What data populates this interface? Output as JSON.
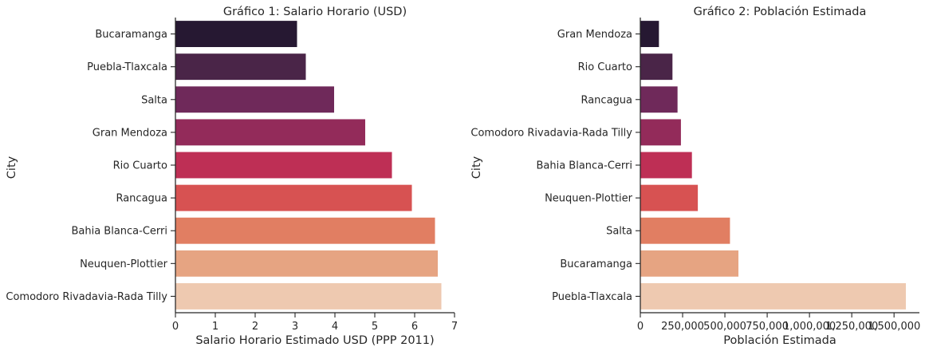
{
  "chart_data": [
    {
      "type": "bar",
      "orientation": "horizontal",
      "title": "Gráfico 1: Salario Horario (USD)",
      "xlabel": "Salario Horario Estimado USD (PPP 2011)",
      "ylabel": "City",
      "categories": [
        "Bucaramanga",
        "Puebla-Tlaxcala",
        "Salta",
        "Gran Mendoza",
        "Rio Cuarto",
        "Rancagua",
        "Bahia Blanca-Cerri",
        "Neuquen-Plottier",
        "Comodoro Rivadavia-Rada Tilly"
      ],
      "values": [
        3.05,
        3.27,
        3.98,
        4.76,
        5.43,
        5.93,
        6.51,
        6.58,
        6.67
      ],
      "xlim": [
        0,
        7
      ],
      "xticks": [
        0,
        1,
        2,
        3,
        4,
        5,
        6,
        7
      ],
      "xtick_labels": [
        "0",
        "1",
        "2",
        "3",
        "4",
        "5",
        "6",
        "7"
      ],
      "colors": [
        "#261832",
        "#4a2548",
        "#6f295a",
        "#932b5a",
        "#be2f55",
        "#d75252",
        "#e17e62",
        "#e6a482",
        "#eec9b0"
      ],
      "grid": false
    },
    {
      "type": "bar",
      "orientation": "horizontal",
      "title": "Gráfico 2: Población Estimada",
      "xlabel": "Población Estimada",
      "ylabel": "City",
      "categories": [
        "Gran Mendoza",
        "Rio Cuarto",
        "Rancagua",
        "Comodoro Rivadavia-Rada Tilly",
        "Bahia Blanca-Cerri",
        "Neuquen-Plottier",
        "Salta",
        "Bucaramanga",
        "Puebla-Tlaxcala"
      ],
      "values": [
        110000,
        190000,
        220000,
        240000,
        305000,
        340000,
        530000,
        580000,
        1570000
      ],
      "xlim": [
        0,
        1650000
      ],
      "xticks": [
        0,
        250000,
        500000,
        750000,
        1000000,
        1250000,
        1500000
      ],
      "xtick_labels": [
        "0",
        "250,000",
        "500,000",
        "750,000",
        "1,000,000",
        "1,250,000",
        "1,500,000"
      ],
      "colors": [
        "#261832",
        "#4a2548",
        "#6f295a",
        "#932b5a",
        "#be2f55",
        "#d75252",
        "#e17e62",
        "#e6a482",
        "#eec9b0"
      ],
      "grid": false
    }
  ]
}
